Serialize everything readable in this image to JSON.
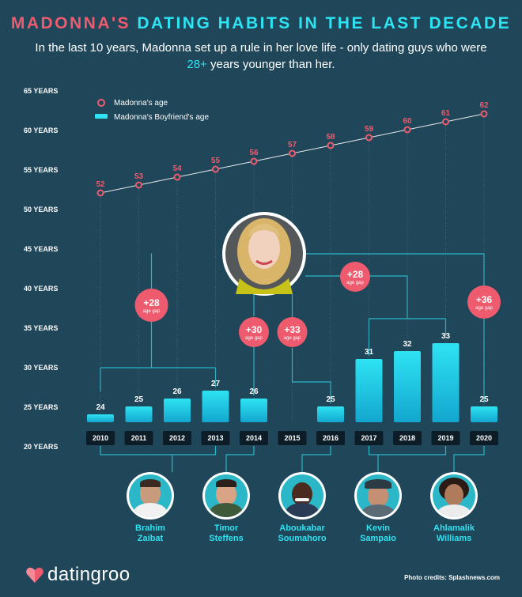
{
  "header": {
    "title_part1": "MADONNA'S",
    "title_part2": "DATING HABITS IN THE LAST DECADE",
    "subtitle_line1": "In the last 10 years, Madonna set up a rule in her love life - only dating guys who were",
    "subtitle_highlight": "28+",
    "subtitle_line2_rest": " years younger than her."
  },
  "colors": {
    "background": "#1f4659",
    "accent_red": "#ef5b6e",
    "accent_cyan": "#2ee3f2",
    "madonna_line": "#e6e9ec",
    "connector": "#2bb7c7",
    "year_label_bg": "#0d1d27"
  },
  "chart_data": {
    "type": "bar",
    "categories": [
      "2010",
      "2011",
      "2012",
      "2013",
      "2014",
      "2015",
      "2016",
      "2017",
      "2018",
      "2019",
      "2020"
    ],
    "y_tick_labels": [
      "65 YEARS",
      "60 YEARS",
      "55 YEARS",
      "50 YEARS",
      "45 YEARS",
      "40 YEARS",
      "35 YEARS",
      "30 YEARS",
      "25 YEARS",
      "20 YEARS"
    ],
    "y_ticks": [
      65,
      60,
      55,
      50,
      45,
      40,
      35,
      30,
      25,
      20
    ],
    "ylim": [
      20,
      65
    ],
    "legend": {
      "position": "top-left",
      "items": [
        "Madonna's age",
        "Madonna's Boyfriend's age"
      ]
    },
    "series": [
      {
        "name": "Madonna's age",
        "type": "line",
        "values": [
          52,
          53,
          54,
          55,
          56,
          57,
          58,
          59,
          60,
          61,
          62
        ]
      },
      {
        "name": "Madonna's Boyfriend's age",
        "type": "bar",
        "values": [
          24,
          25,
          26,
          27,
          26,
          null,
          25,
          31,
          32,
          33,
          25
        ]
      }
    ],
    "age_gap_badges": [
      {
        "value": "+28",
        "label": "age gap"
      },
      {
        "value": "+30",
        "label": "age gap"
      },
      {
        "value": "+33",
        "label": "age gap"
      },
      {
        "value": "+28",
        "label": "age gap"
      },
      {
        "value": "+36",
        "label": "age gap"
      }
    ]
  },
  "boyfriends": [
    {
      "first": "Brahim",
      "last": "Zaibat",
      "icon": "person-avatar-icon"
    },
    {
      "first": "Timor",
      "last": "Steffens",
      "icon": "person-avatar-icon"
    },
    {
      "first": "Aboukabar",
      "last": "Soumahoro",
      "icon": "person-avatar-icon"
    },
    {
      "first": "Kevin",
      "last": "Sampaio",
      "icon": "person-avatar-icon"
    },
    {
      "first": "Ahlamalik",
      "last": "Williams",
      "icon": "person-avatar-icon"
    }
  ],
  "footer": {
    "logo_text": "datingroo",
    "logo_icon": "heart-logo-icon",
    "credits": "Photo credits: Splashnews.com"
  }
}
